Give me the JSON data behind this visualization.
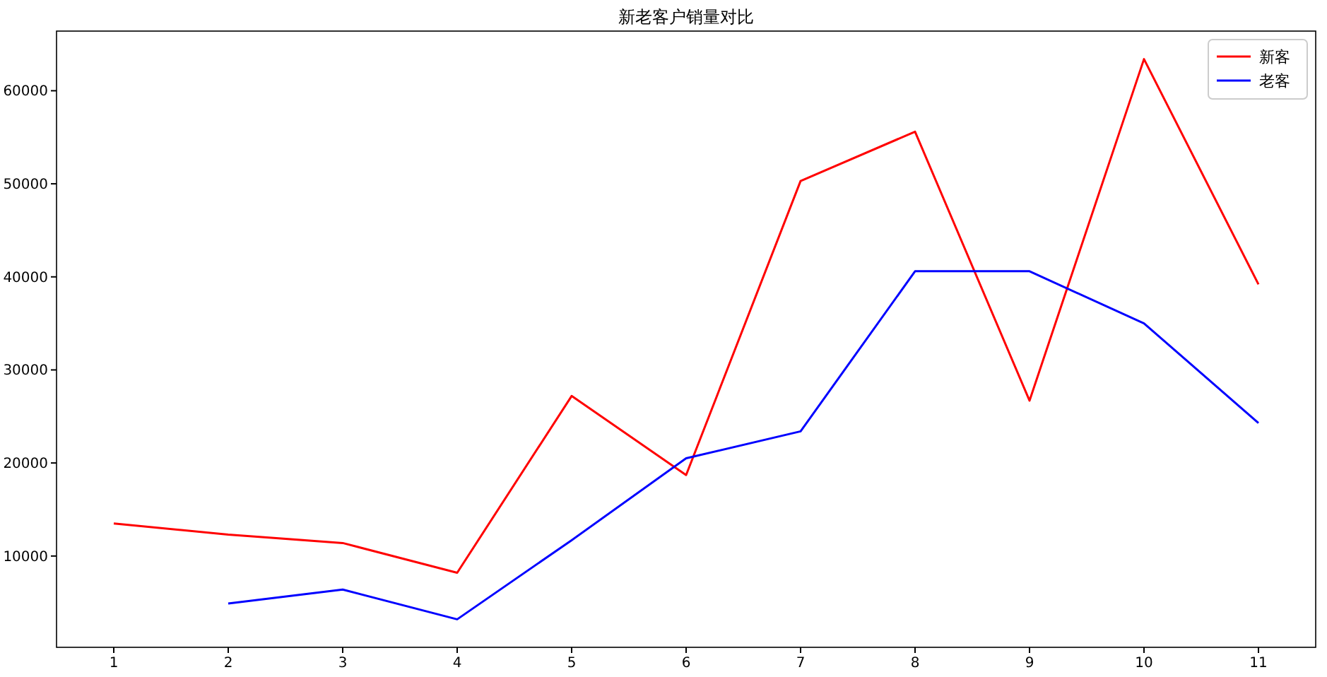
{
  "chart_data": {
    "type": "line",
    "title": "新老客户销量对比",
    "x": [
      1,
      2,
      3,
      4,
      5,
      6,
      7,
      8,
      9,
      10,
      11
    ],
    "series": [
      {
        "name": "新客",
        "color": "#ff0000",
        "values": [
          13500,
          12300,
          11400,
          8200,
          27200,
          18700,
          50300,
          55600,
          26700,
          63400,
          39200
        ]
      },
      {
        "name": "老客",
        "color": "#0000ff",
        "values": [
          null,
          4900,
          6400,
          3200,
          11700,
          20500,
          23400,
          40600,
          40600,
          35000,
          24300
        ]
      }
    ],
    "xlim": [
      0.5,
      11.5
    ],
    "xticks": [
      1,
      2,
      3,
      4,
      5,
      6,
      7,
      8,
      9,
      10,
      11
    ],
    "ylim": [
      190,
      66410
    ],
    "yticks": [
      10000,
      20000,
      30000,
      40000,
      50000,
      60000
    ],
    "legend": "top right",
    "grid": false,
    "marker": "none",
    "line_style": "solid"
  }
}
